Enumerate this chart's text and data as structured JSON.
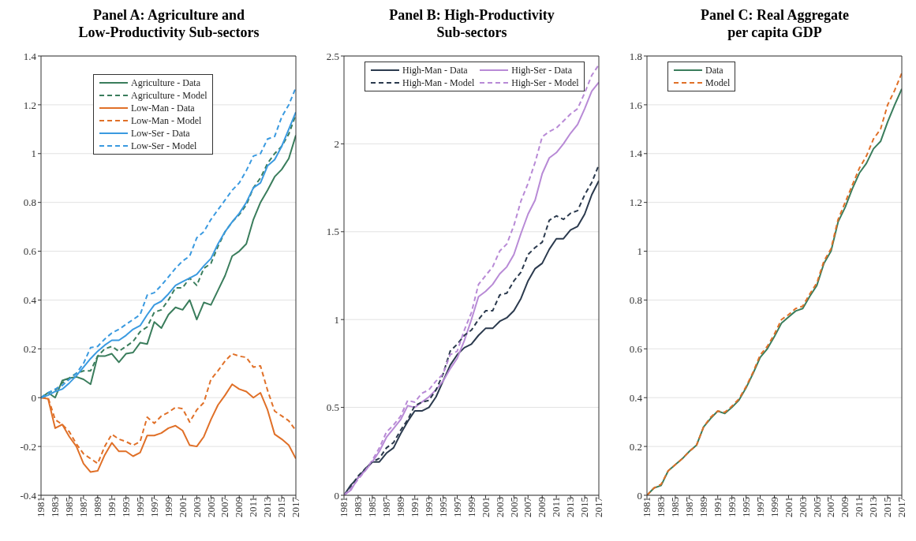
{
  "chart_data": [
    {
      "type": "line",
      "title": "Panel A: Agriculture and\nLow-Productivity Sub-sectors",
      "x": [
        1981,
        1982,
        1983,
        1984,
        1985,
        1986,
        1987,
        1988,
        1989,
        1990,
        1991,
        1992,
        1993,
        1994,
        1995,
        1996,
        1997,
        1998,
        1999,
        2000,
        2001,
        2002,
        2003,
        2004,
        2005,
        2006,
        2007,
        2008,
        2009,
        2010,
        2011,
        2012,
        2013,
        2014,
        2015,
        2016,
        2017
      ],
      "xlim": [
        1981,
        2017
      ],
      "xticks": [
        1981,
        1983,
        1985,
        1987,
        1989,
        1991,
        1993,
        1995,
        1997,
        1999,
        2001,
        2003,
        2005,
        2007,
        2009,
        2011,
        2013,
        2015,
        2017
      ],
      "ylim": [
        -0.4,
        1.4
      ],
      "yticks": [
        -0.4,
        -0.2,
        0,
        0.2,
        0.4,
        0.6,
        0.8,
        1,
        1.2,
        1.4
      ],
      "grid": "y",
      "legend": "top",
      "marker": "none",
      "series": [
        {
          "name": "Agriculture - Data",
          "color": "#3a7d5c",
          "line_style": "solid",
          "values": [
            0,
            0.02,
            0.0,
            0.07,
            0.08,
            0.085,
            0.075,
            0.055,
            0.17,
            0.17,
            0.18,
            0.145,
            0.18,
            0.185,
            0.225,
            0.22,
            0.31,
            0.285,
            0.34,
            0.37,
            0.36,
            0.4,
            0.32,
            0.39,
            0.38,
            0.44,
            0.5,
            0.58,
            0.6,
            0.63,
            0.73,
            0.8,
            0.85,
            0.905,
            0.935,
            0.98,
            1.075
          ]
        },
        {
          "name": "Agriculture - Model",
          "color": "#3a7d5c",
          "line_style": "dashed",
          "values": [
            0,
            0.02,
            0.03,
            0.06,
            0.08,
            0.1,
            0.11,
            0.11,
            0.17,
            0.2,
            0.21,
            0.19,
            0.21,
            0.23,
            0.27,
            0.29,
            0.35,
            0.36,
            0.4,
            0.45,
            0.45,
            0.49,
            0.46,
            0.53,
            0.55,
            0.62,
            0.68,
            0.72,
            0.75,
            0.79,
            0.86,
            0.9,
            0.96,
            1.0,
            1.03,
            1.08,
            1.16
          ]
        },
        {
          "name": "Low-Man - Data",
          "color": "#e07028",
          "line_style": "solid",
          "values": [
            0,
            -0.005,
            -0.125,
            -0.11,
            -0.16,
            -0.2,
            -0.27,
            -0.305,
            -0.3,
            -0.235,
            -0.185,
            -0.22,
            -0.22,
            -0.24,
            -0.225,
            -0.155,
            -0.155,
            -0.145,
            -0.125,
            -0.115,
            -0.135,
            -0.195,
            -0.2,
            -0.16,
            -0.09,
            -0.03,
            0.01,
            0.055,
            0.035,
            0.025,
            0.0,
            0.02,
            -0.05,
            -0.15,
            -0.17,
            -0.195,
            -0.25
          ]
        },
        {
          "name": "Low-Man - Model",
          "color": "#e07028",
          "line_style": "dashed",
          "values": [
            0,
            0,
            -0.09,
            -0.11,
            -0.14,
            -0.19,
            -0.23,
            -0.25,
            -0.27,
            -0.2,
            -0.15,
            -0.17,
            -0.18,
            -0.195,
            -0.18,
            -0.08,
            -0.105,
            -0.075,
            -0.06,
            -0.04,
            -0.045,
            -0.1,
            -0.05,
            -0.02,
            0.075,
            0.11,
            0.15,
            0.18,
            0.17,
            0.165,
            0.125,
            0.13,
            0.03,
            -0.055,
            -0.075,
            -0.095,
            -0.135
          ]
        },
        {
          "name": "Low-Ser - Data",
          "color": "#3a9ae0",
          "line_style": "solid",
          "values": [
            0,
            0.01,
            0.025,
            0.035,
            0.06,
            0.09,
            0.125,
            0.16,
            0.19,
            0.215,
            0.235,
            0.235,
            0.255,
            0.28,
            0.295,
            0.34,
            0.38,
            0.395,
            0.425,
            0.46,
            0.475,
            0.49,
            0.505,
            0.54,
            0.57,
            0.63,
            0.68,
            0.72,
            0.755,
            0.8,
            0.86,
            0.88,
            0.95,
            0.975,
            1.03,
            1.1,
            1.17
          ]
        },
        {
          "name": "Low-Ser - Model",
          "color": "#3a9ae0",
          "line_style": "dashed",
          "values": [
            0,
            0.02,
            0.035,
            0.05,
            0.075,
            0.1,
            0.14,
            0.205,
            0.21,
            0.24,
            0.265,
            0.28,
            0.3,
            0.32,
            0.34,
            0.42,
            0.43,
            0.46,
            0.495,
            0.53,
            0.56,
            0.58,
            0.655,
            0.68,
            0.73,
            0.77,
            0.81,
            0.85,
            0.88,
            0.93,
            0.99,
            1.0,
            1.06,
            1.07,
            1.15,
            1.2,
            1.27
          ]
        }
      ]
    },
    {
      "type": "line",
      "title": "Panel B: High-Productivity\nSub-sectors",
      "x": [
        1981,
        1982,
        1983,
        1984,
        1985,
        1986,
        1987,
        1988,
        1989,
        1990,
        1991,
        1992,
        1993,
        1994,
        1995,
        1996,
        1997,
        1998,
        1999,
        2000,
        2001,
        2002,
        2003,
        2004,
        2005,
        2006,
        2007,
        2008,
        2009,
        2010,
        2011,
        2012,
        2013,
        2014,
        2015,
        2016,
        2017
      ],
      "xlim": [
        1981,
        2017
      ],
      "xticks": [
        1981,
        1983,
        1985,
        1987,
        1989,
        1991,
        1993,
        1995,
        1997,
        1999,
        2001,
        2003,
        2005,
        2007,
        2009,
        2011,
        2013,
        2015,
        2017
      ],
      "ylim": [
        0,
        2.5
      ],
      "yticks": [
        0,
        0.5,
        1,
        1.5,
        2,
        2.5
      ],
      "grid": "y",
      "legend": "top left",
      "marker": "none",
      "series": [
        {
          "name": "High-Man - Data",
          "color": "#2b3a4e",
          "line_style": "solid",
          "values": [
            0,
            0.06,
            0.1,
            0.15,
            0.19,
            0.19,
            0.24,
            0.27,
            0.35,
            0.42,
            0.48,
            0.48,
            0.5,
            0.56,
            0.65,
            0.74,
            0.8,
            0.84,
            0.86,
            0.91,
            0.95,
            0.95,
            0.99,
            1.01,
            1.05,
            1.12,
            1.22,
            1.29,
            1.32,
            1.4,
            1.46,
            1.46,
            1.51,
            1.53,
            1.6,
            1.71,
            1.79
          ]
        },
        {
          "name": "High-Ser - Data",
          "color": "#b88ad6",
          "line_style": "solid",
          "values": [
            0,
            0.03,
            0.1,
            0.14,
            0.19,
            0.25,
            0.33,
            0.38,
            0.43,
            0.51,
            0.5,
            0.53,
            0.56,
            0.6,
            0.65,
            0.72,
            0.78,
            0.88,
            1.0,
            1.13,
            1.16,
            1.2,
            1.26,
            1.3,
            1.37,
            1.49,
            1.6,
            1.68,
            1.83,
            1.92,
            1.95,
            2.0,
            2.06,
            2.11,
            2.2,
            2.3,
            2.35
          ]
        },
        {
          "name": "High-Man - Model",
          "color": "#2b3a4e",
          "line_style": "dashed",
          "values": [
            0,
            0.05,
            0.11,
            0.15,
            0.19,
            0.21,
            0.27,
            0.3,
            0.37,
            0.43,
            0.51,
            0.53,
            0.54,
            0.6,
            0.69,
            0.82,
            0.86,
            0.91,
            0.94,
            1.0,
            1.05,
            1.05,
            1.14,
            1.15,
            1.22,
            1.27,
            1.37,
            1.41,
            1.44,
            1.565,
            1.59,
            1.57,
            1.605,
            1.62,
            1.71,
            1.78,
            1.88
          ]
        },
        {
          "name": "High-Ser - Model",
          "color": "#b88ad6",
          "line_style": "dashed",
          "values": [
            0,
            0.04,
            0.09,
            0.14,
            0.2,
            0.27,
            0.36,
            0.4,
            0.45,
            0.54,
            0.53,
            0.58,
            0.6,
            0.65,
            0.69,
            0.8,
            0.82,
            0.94,
            1.04,
            1.2,
            1.25,
            1.3,
            1.39,
            1.43,
            1.535,
            1.675,
            1.775,
            1.895,
            2.04,
            2.07,
            2.09,
            2.13,
            2.17,
            2.2,
            2.29,
            2.39,
            2.45
          ]
        }
      ]
    },
    {
      "type": "line",
      "title": "Panel C: Real Aggregate\nper capita GDP",
      "x": [
        1981,
        1982,
        1983,
        1984,
        1985,
        1986,
        1987,
        1988,
        1989,
        1990,
        1991,
        1992,
        1993,
        1994,
        1995,
        1996,
        1997,
        1998,
        1999,
        2000,
        2001,
        2002,
        2003,
        2004,
        2005,
        2006,
        2007,
        2008,
        2009,
        2010,
        2011,
        2012,
        2013,
        2014,
        2015,
        2016,
        2017
      ],
      "xlim": [
        1981,
        2017
      ],
      "xticks": [
        1981,
        1983,
        1985,
        1987,
        1989,
        1991,
        1993,
        1995,
        1997,
        1999,
        2001,
        2003,
        2005,
        2007,
        2009,
        2011,
        2013,
        2015,
        2017
      ],
      "ylim": [
        0,
        1.8
      ],
      "yticks": [
        0,
        0.2,
        0.4,
        0.6,
        0.8,
        1,
        1.2,
        1.4,
        1.6,
        1.8
      ],
      "grid": "y",
      "legend": "top left",
      "marker": "none",
      "series": [
        {
          "name": "Data",
          "color": "#3a7d5c",
          "line_style": "solid",
          "values": [
            0,
            0.03,
            0.04,
            0.1,
            0.125,
            0.15,
            0.18,
            0.205,
            0.28,
            0.315,
            0.345,
            0.335,
            0.36,
            0.39,
            0.44,
            0.5,
            0.565,
            0.6,
            0.65,
            0.705,
            0.73,
            0.755,
            0.765,
            0.815,
            0.86,
            0.95,
            1.0,
            1.12,
            1.18,
            1.255,
            1.32,
            1.36,
            1.42,
            1.45,
            1.53,
            1.6,
            1.665
          ]
        },
        {
          "name": "Model",
          "color": "#e07028",
          "line_style": "dashed",
          "values": [
            0,
            0.03,
            0.045,
            0.1,
            0.125,
            0.15,
            0.18,
            0.205,
            0.28,
            0.32,
            0.345,
            0.34,
            0.365,
            0.395,
            0.445,
            0.505,
            0.575,
            0.61,
            0.66,
            0.72,
            0.74,
            0.765,
            0.775,
            0.825,
            0.87,
            0.96,
            1.01,
            1.13,
            1.2,
            1.27,
            1.34,
            1.39,
            1.46,
            1.5,
            1.6,
            1.66,
            1.73
          ]
        }
      ]
    }
  ]
}
